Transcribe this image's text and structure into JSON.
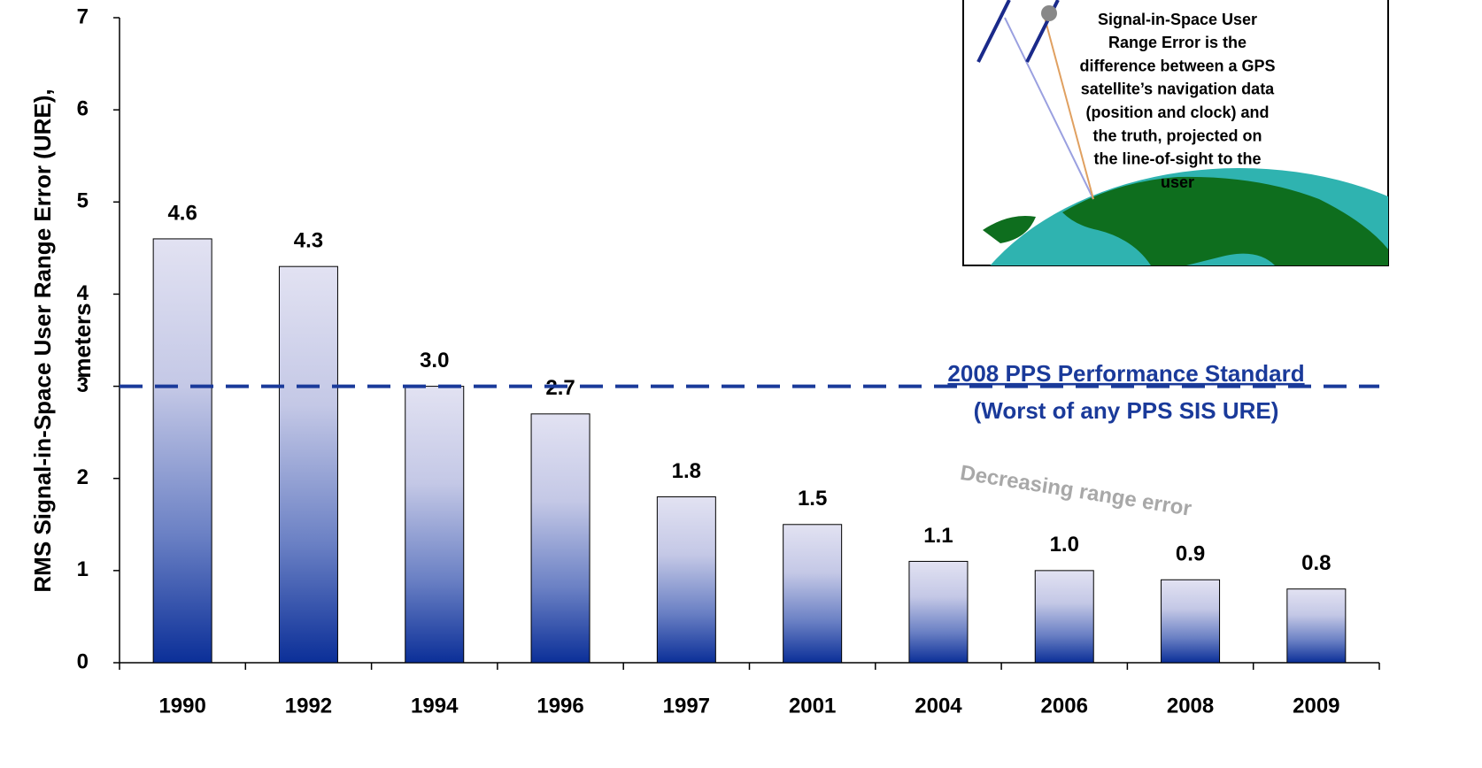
{
  "chart_data": {
    "type": "bar",
    "ylabel": [
      "RMS Signal-in-Space User Range Error (URE),",
      "meters"
    ],
    "categories": [
      "1990",
      "1992",
      "1994",
      "1996",
      "1997",
      "2001",
      "2004",
      "2006",
      "2008",
      "2009"
    ],
    "values": [
      4.6,
      4.3,
      3.0,
      2.7,
      1.8,
      1.5,
      1.1,
      1.0,
      0.9,
      0.8
    ],
    "value_labels": [
      "4.6",
      "4.3",
      "3.0",
      "2.7",
      "1.8",
      "1.5",
      "1.1",
      "1.0",
      "0.9",
      "0.8"
    ],
    "color": "#0b2f98",
    "ylim": [
      0,
      7
    ],
    "yticks": [
      0,
      1,
      2,
      3,
      4,
      5,
      6,
      7
    ],
    "reference_line": {
      "value": 3,
      "color": "#1a3a9a",
      "label": [
        "2008 PPS Performance Standard",
        "(Worst of any PPS SIS URE)"
      ]
    },
    "annotation": "Decreasing range error",
    "inset": {
      "lines": [
        "Signal-in-Space User",
        "Range Error is the",
        "difference between a GPS",
        "satellite’s navigation data",
        "(position and clock) and",
        "the truth, projected on",
        "the line-of-sight to the",
        "user"
      ]
    }
  }
}
